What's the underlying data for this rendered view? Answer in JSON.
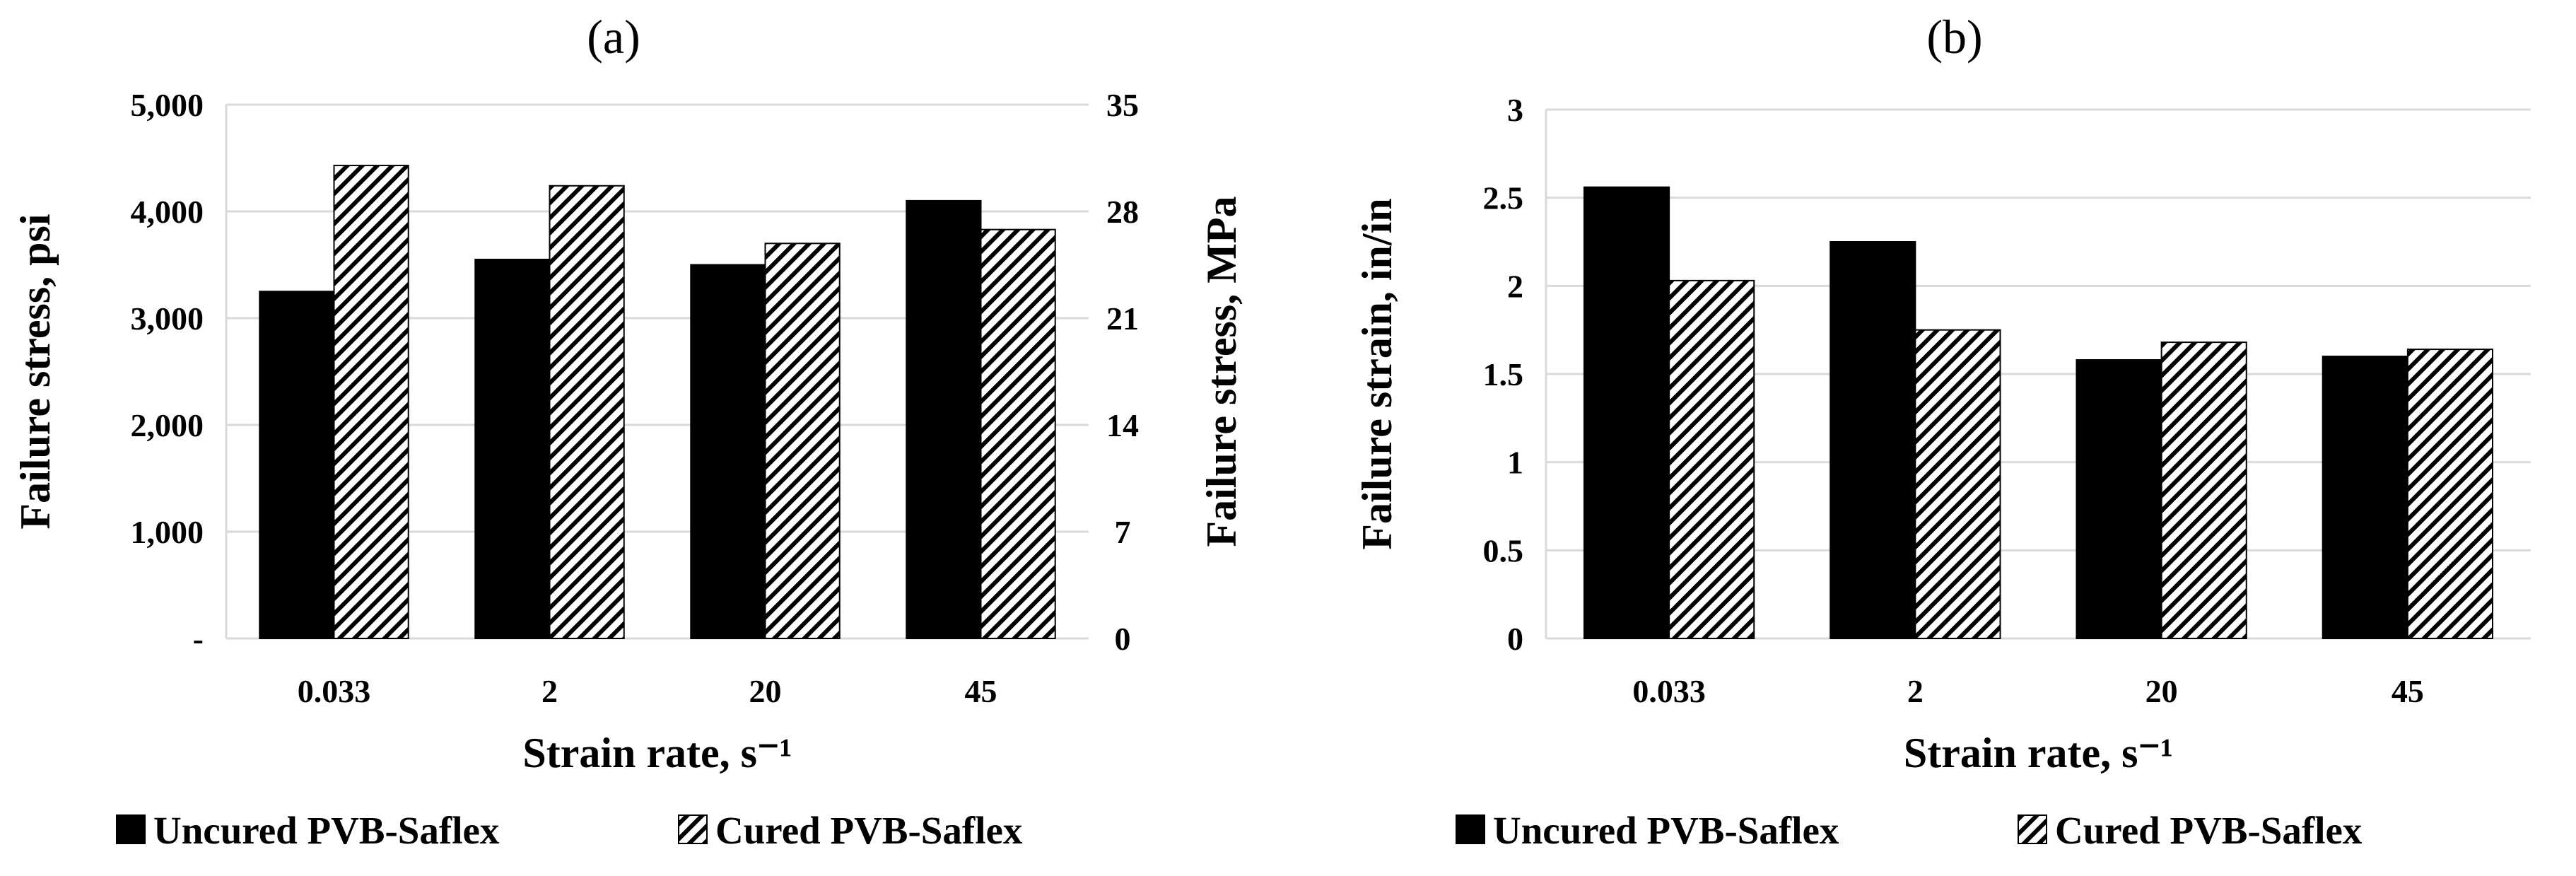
{
  "patterns": {
    "solid_color": "#000000",
    "hatch_color": "#000000",
    "grid_color": "#d9d9d9"
  },
  "chart_data": [
    {
      "id": "a",
      "type": "bar",
      "title": "(a)",
      "categories": [
        "0.033",
        "2",
        "20",
        "45"
      ],
      "series": [
        {
          "name": "Uncured PVB-Saflex",
          "style": "solid",
          "values": [
            3250,
            3550,
            3500,
            4100
          ]
        },
        {
          "name": "Cured PVB-Saflex",
          "style": "hatched",
          "values": [
            4430,
            4240,
            3700,
            3830
          ]
        }
      ],
      "xlabel": "Strain rate, s⁻¹",
      "ylabel": "Failure stress, psi",
      "ylim": [
        0,
        5000
      ],
      "yticks": [
        0,
        1000,
        2000,
        3000,
        4000,
        5000
      ],
      "ytick_labels": [
        "-",
        "1,000",
        "2,000",
        "3,000",
        "4,000",
        "5,000"
      ],
      "y2label": "Failure stress, MPa",
      "y2lim": [
        0,
        35
      ],
      "y2ticks": [
        0,
        7,
        14,
        21,
        28,
        35
      ],
      "y2tick_labels": [
        "0",
        "7",
        "14",
        "21",
        "28",
        "35"
      ],
      "grid": true,
      "legend_position": "bottom"
    },
    {
      "id": "b",
      "type": "bar",
      "title": "(b)",
      "categories": [
        "0.033",
        "2",
        "20",
        "45"
      ],
      "series": [
        {
          "name": "Uncured PVB-Saflex",
          "style": "solid",
          "values": [
            2.56,
            2.25,
            1.58,
            1.6
          ]
        },
        {
          "name": "Cured PVB-Saflex",
          "style": "hatched",
          "values": [
            2.03,
            1.75,
            1.68,
            1.64
          ]
        }
      ],
      "xlabel": "Strain rate, s⁻¹",
      "ylabel": "Failure strain, in/in",
      "ylim": [
        0,
        3
      ],
      "yticks": [
        0,
        0.5,
        1,
        1.5,
        2,
        2.5,
        3
      ],
      "ytick_labels": [
        "0",
        "0.5",
        "1",
        "1.5",
        "2",
        "2.5",
        "3"
      ],
      "grid": true,
      "legend_position": "bottom"
    }
  ]
}
